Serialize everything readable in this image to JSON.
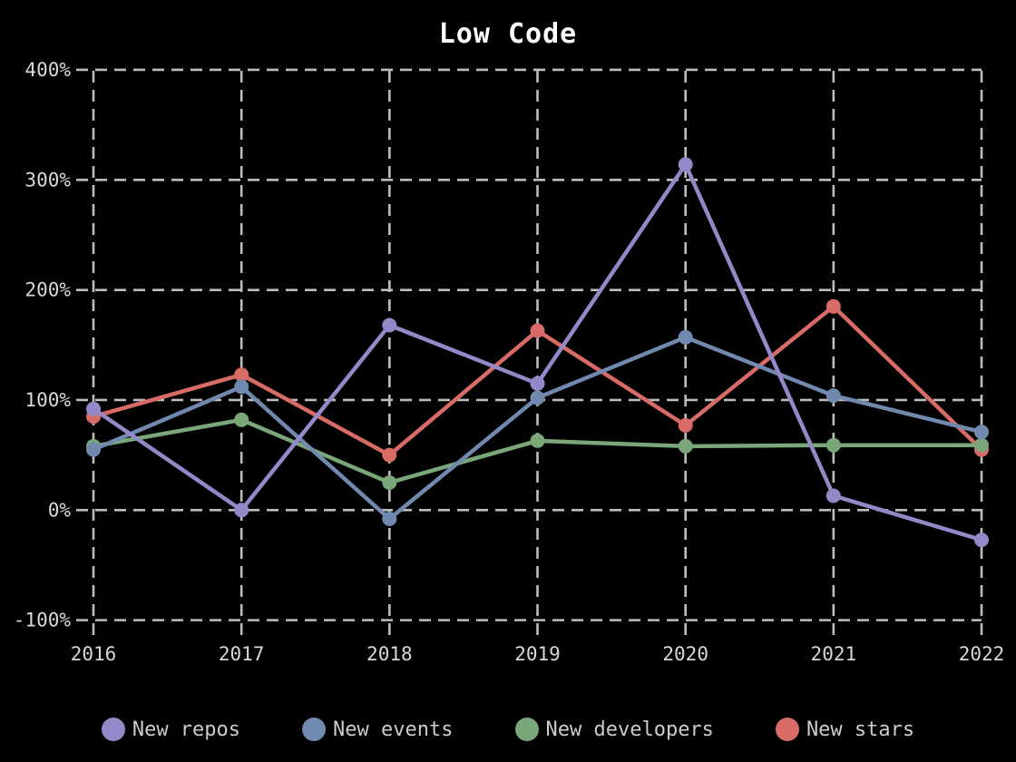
{
  "title": "Low Code",
  "chart_data": {
    "type": "line",
    "title": "Low Code",
    "categories": [
      "2016",
      "2017",
      "2018",
      "2019",
      "2020",
      "2021",
      "2022"
    ],
    "series": [
      {
        "name": "New repos",
        "color": "#9489c8",
        "values": [
          92,
          0,
          168,
          115,
          314,
          13,
          -27
        ]
      },
      {
        "name": "New events",
        "color": "#7189ae",
        "values": [
          55,
          112,
          -8,
          102,
          157,
          104,
          71
        ]
      },
      {
        "name": "New developers",
        "color": "#7aa77a",
        "values": [
          58,
          82,
          25,
          63,
          58,
          59,
          59
        ]
      },
      {
        "name": "New stars",
        "color": "#d96b66",
        "values": [
          85,
          123,
          50,
          163,
          77,
          185,
          55
        ]
      }
    ],
    "y_ticks": [
      "400%",
      "300%",
      "200%",
      "100%",
      "0%",
      "-100%"
    ],
    "y_tick_values": [
      400,
      300,
      200,
      100,
      0,
      -100
    ],
    "ylim": [
      -100,
      400
    ],
    "xlabel": "",
    "ylabel": "",
    "grid": "dashed",
    "legend_position": "bottom",
    "background_color": "#000000",
    "text_color": "#d8d8d8",
    "grid_color": "#bdbdbd",
    "title_color": "#ffffff"
  }
}
